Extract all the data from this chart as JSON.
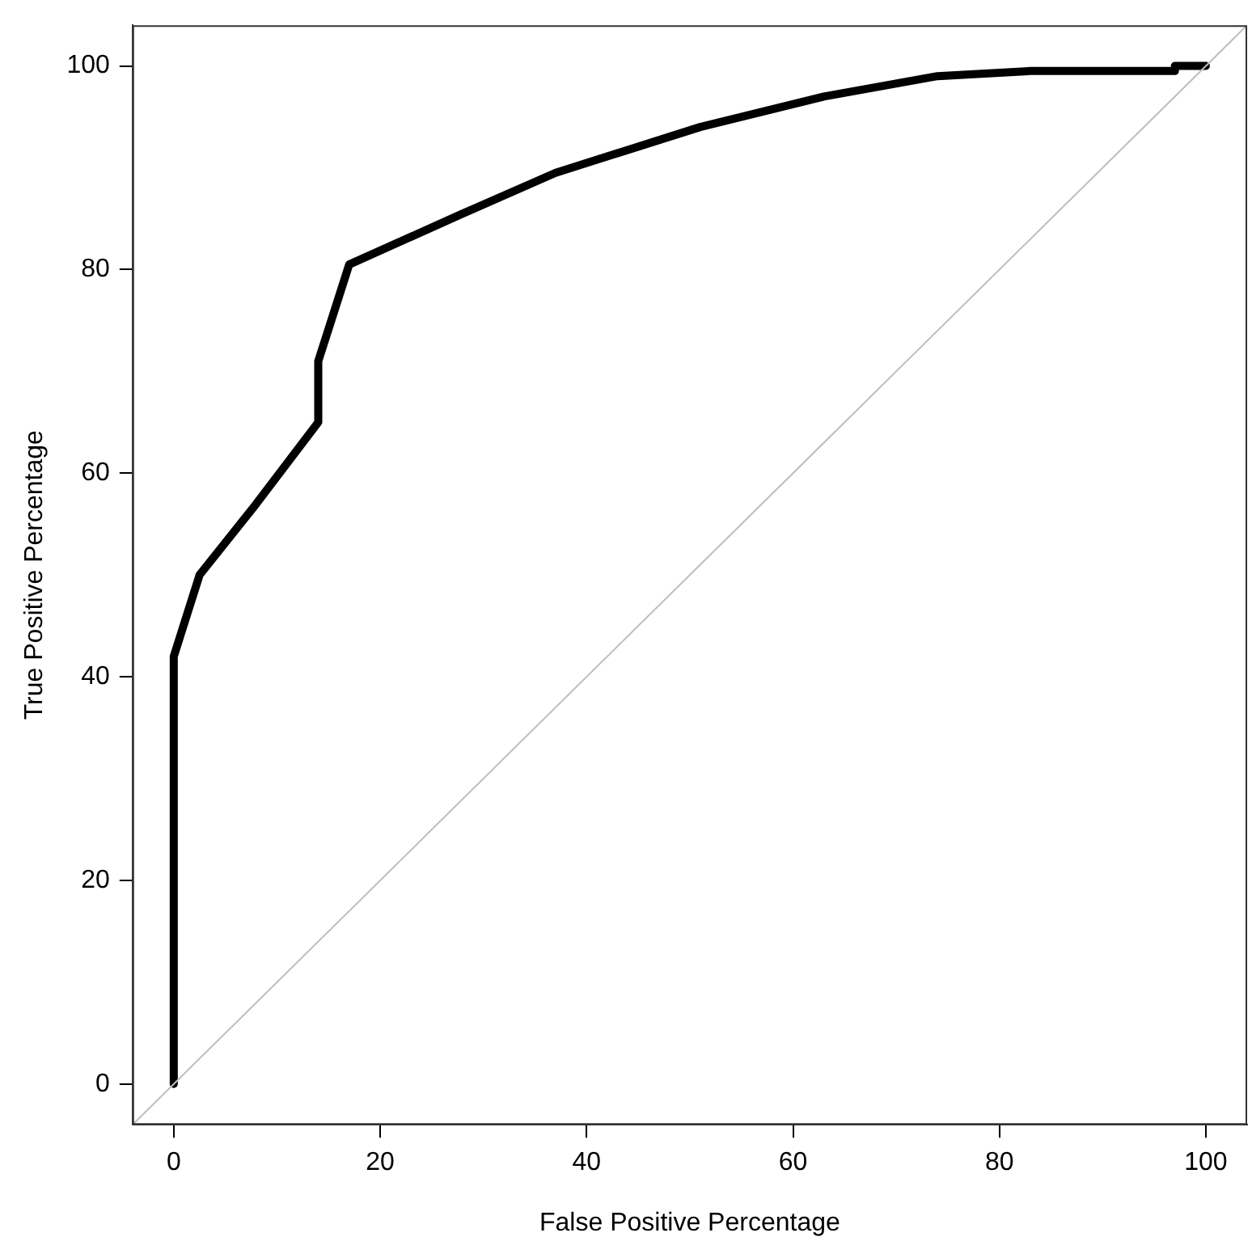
{
  "chart_data": {
    "type": "line",
    "xlabel": "False Positive Percentage",
    "ylabel": "True Positive Percentage",
    "xlim": [
      -4,
      104
    ],
    "ylim": [
      -4,
      104
    ],
    "xticks": [
      0,
      20,
      40,
      60,
      80,
      100
    ],
    "yticks": [
      0,
      20,
      40,
      60,
      80,
      100
    ],
    "grid": false,
    "marker": "none",
    "line_style": "solid",
    "series": [
      {
        "color": "#bebebe",
        "x": [
          -4,
          104
        ],
        "values": [
          -4,
          104
        ]
      },
      {
        "color": "#000000",
        "x": [
          0,
          0,
          2.5,
          8,
          14,
          14,
          17,
          28,
          37,
          51,
          63,
          74,
          83,
          97,
          97,
          100
        ],
        "values": [
          0,
          42,
          50,
          57,
          65,
          71,
          80.5,
          85.5,
          89.5,
          94,
          97,
          99,
          99.5,
          99.5,
          100,
          100
        ]
      }
    ]
  }
}
